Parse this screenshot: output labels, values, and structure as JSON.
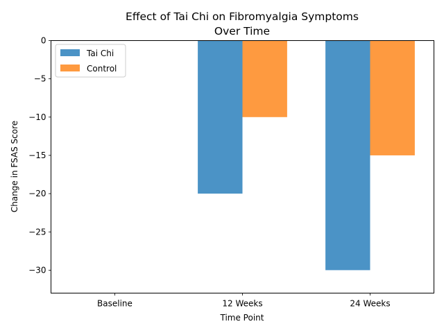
{
  "chart_data": {
    "type": "bar",
    "title_lines": [
      "Effect of Tai Chi on Fibromyalgia Symptoms",
      "Over Time"
    ],
    "xlabel": "Time Point",
    "ylabel": "Change in FSAS Score",
    "categories": [
      "Baseline",
      "12 Weeks",
      "24 Weeks"
    ],
    "series": [
      {
        "name": "Tai Chi",
        "values": [
          0,
          -20,
          -30
        ],
        "color": "#4b93c6"
      },
      {
        "name": "Control",
        "values": [
          0,
          -10,
          -15
        ],
        "color": "#fe9a40"
      }
    ],
    "ylim": [
      -33,
      0
    ],
    "yticks": [
      0,
      -5,
      -10,
      -15,
      -20,
      -25,
      -30
    ],
    "ytick_labels": [
      "0",
      "−5",
      "−10",
      "−15",
      "−20",
      "−25",
      "−30"
    ],
    "legend_position": "top-left",
    "grid": false
  }
}
